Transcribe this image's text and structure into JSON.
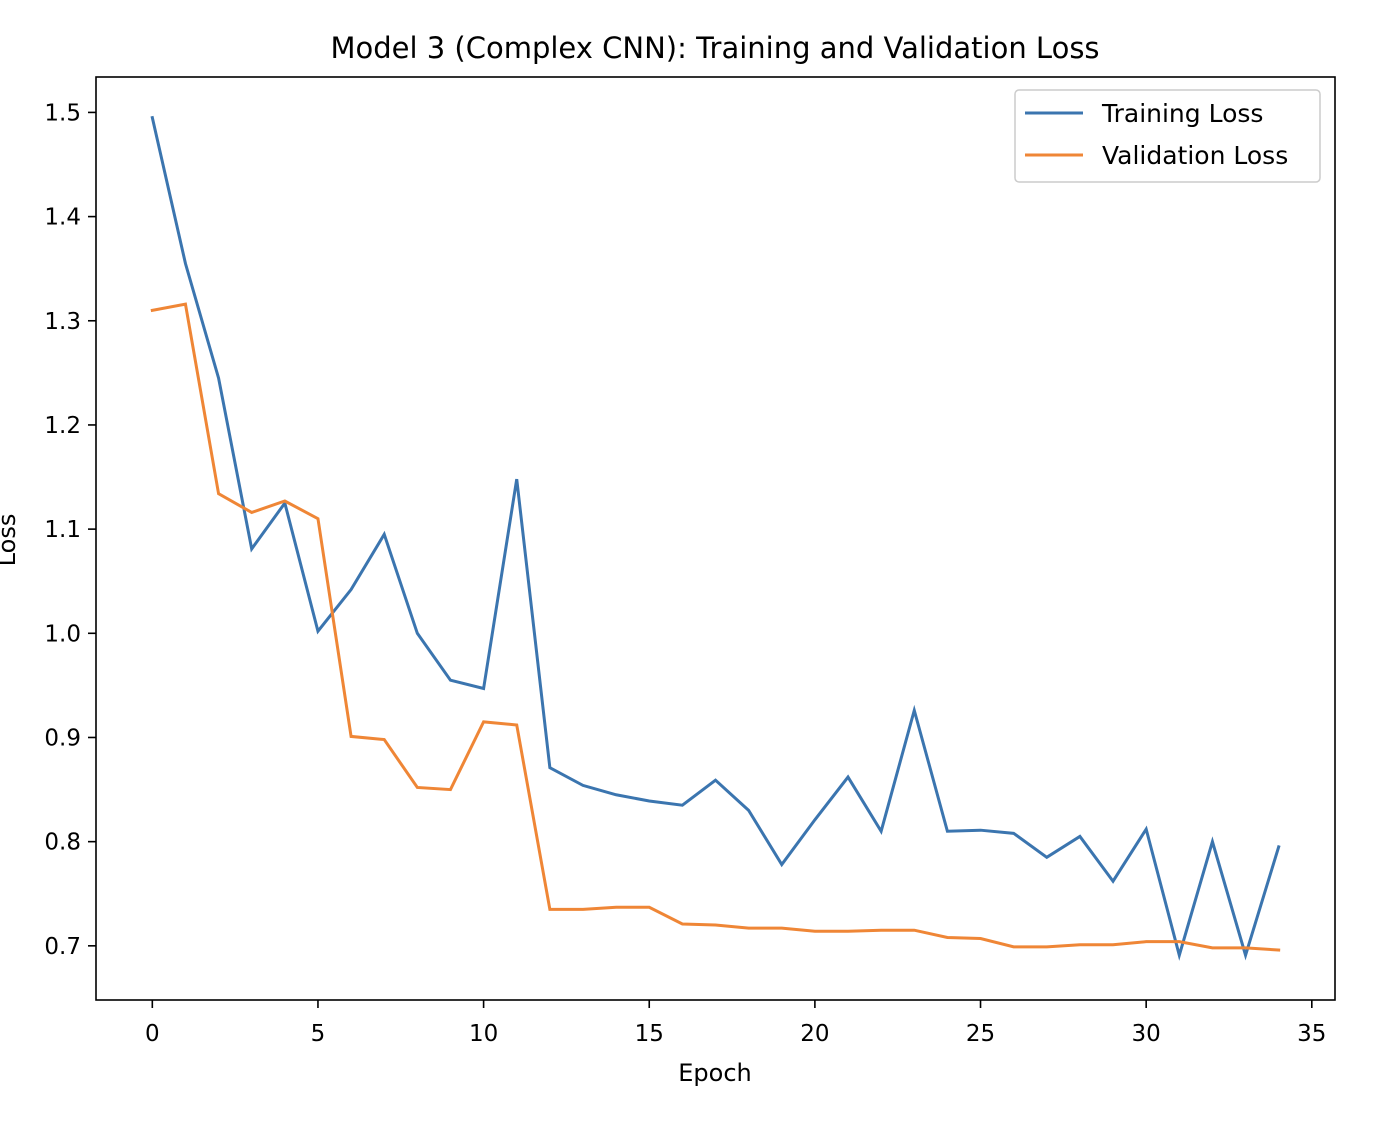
{
  "chart_data": {
    "type": "line",
    "title": "Model 3 (Complex CNN): Training and Validation Loss",
    "xlabel": "Epoch",
    "ylabel": "Loss",
    "xlim": [
      -1.7,
      35.7
    ],
    "ylim": [
      0.648,
      1.534
    ],
    "xticks": [
      0,
      5,
      10,
      15,
      20,
      25,
      30,
      35
    ],
    "xtick_labels": [
      "0",
      "5",
      "10",
      "15",
      "20",
      "25",
      "30",
      "35"
    ],
    "yticks": [
      0.7,
      0.8,
      0.9,
      1.0,
      1.1,
      1.2,
      1.3,
      1.4,
      1.5
    ],
    "ytick_labels": [
      "0.7",
      "0.8",
      "0.9",
      "1.0",
      "1.1",
      "1.2",
      "1.3",
      "1.4",
      "1.5"
    ],
    "grid": false,
    "legend_position": "top-right",
    "x": [
      0,
      1,
      2,
      3,
      4,
      5,
      6,
      7,
      8,
      9,
      10,
      11,
      12,
      13,
      14,
      15,
      16,
      17,
      18,
      19,
      20,
      21,
      22,
      23,
      24,
      25,
      26,
      27,
      28,
      29,
      30,
      31,
      32,
      33,
      34
    ],
    "series": [
      {
        "name": "Training Loss",
        "color": "#3b75af",
        "values": [
          1.495,
          1.355,
          1.245,
          1.081,
          1.125,
          1.002,
          1.042,
          1.095,
          1.0,
          0.955,
          0.947,
          1.148,
          0.871,
          0.854,
          0.845,
          0.839,
          0.835,
          0.859,
          0.83,
          0.778,
          0.821,
          0.862,
          0.81,
          0.926,
          0.81,
          0.811,
          0.808,
          0.785,
          0.805,
          0.762,
          0.812,
          0.691,
          0.8,
          0.691,
          0.795
        ]
      },
      {
        "name": "Validation Loss",
        "color": "#ef8636",
        "values": [
          1.31,
          1.316,
          1.134,
          1.116,
          1.127,
          1.11,
          0.901,
          0.898,
          0.852,
          0.85,
          0.915,
          0.912,
          0.735,
          0.735,
          0.737,
          0.737,
          0.721,
          0.72,
          0.717,
          0.717,
          0.714,
          0.714,
          0.715,
          0.715,
          0.708,
          0.707,
          0.699,
          0.699,
          0.701,
          0.701,
          0.704,
          0.704,
          0.698,
          0.698,
          0.696
        ]
      }
    ]
  }
}
